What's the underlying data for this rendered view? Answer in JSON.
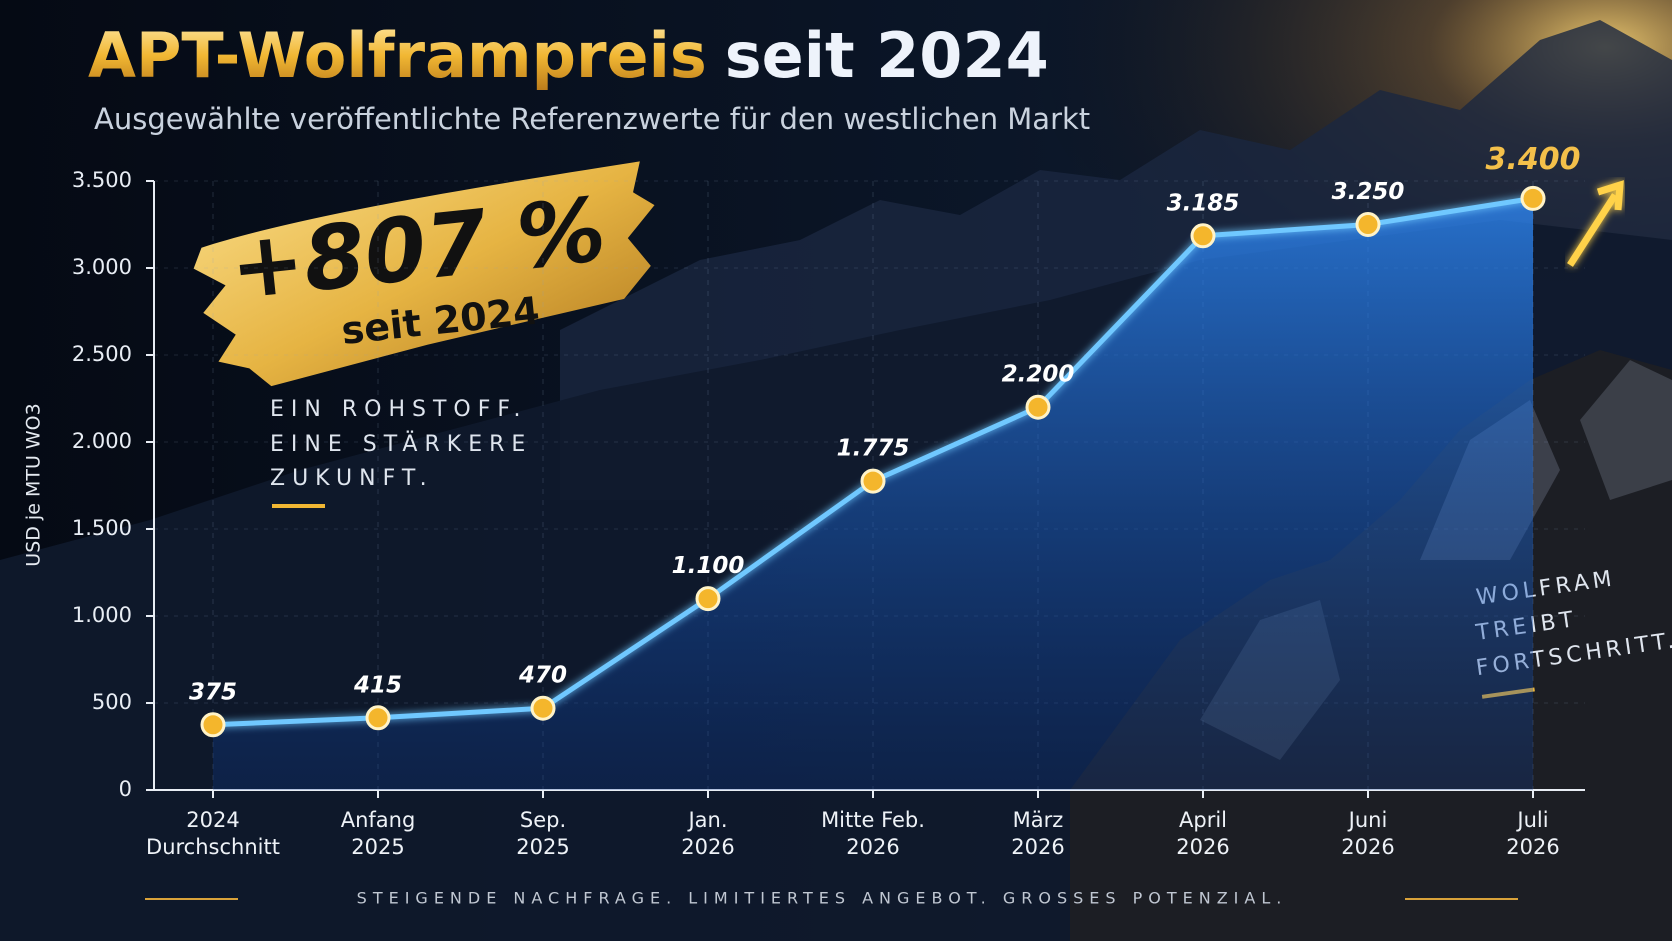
{
  "chart_data": {
    "type": "line",
    "title": {
      "highlight": "APT-Wolframpreis",
      "rest": "seit 2024"
    },
    "subtitle": "Ausgewählte veröffentlichte Referenzwerte für den westlichen Markt",
    "y_label": "USD je MTU WO3",
    "badge": {
      "big": "+807 %",
      "small": "seit 2024"
    },
    "slogan_left": [
      "EIN ROHSTOFF.",
      "EINE STÄRKERE",
      "ZUKUNFT."
    ],
    "slogan_right": [
      "WOLFRAM",
      "TREIBT",
      "FORTSCHRITT."
    ],
    "footer": "STEIGENDE NACHFRAGE. LIMITIERTES ANGEBOT. GROSSES POTENZIAL.",
    "categories": [
      [
        "2024",
        "Durchschnitt"
      ],
      [
        "Anfang",
        "2025"
      ],
      [
        "Sep.",
        "2025"
      ],
      [
        "Jan.",
        "2026"
      ],
      [
        "Mitte Feb.",
        "2026"
      ],
      [
        "März",
        "2026"
      ],
      [
        "April",
        "2026"
      ],
      [
        "Juni",
        "2026"
      ],
      [
        "Juli",
        "2026"
      ]
    ],
    "values": [
      375,
      415,
      470,
      1100,
      1775,
      2200,
      3185,
      3250,
      3400
    ],
    "value_labels": [
      "375",
      "415",
      "470",
      "1.100",
      "1.775",
      "2.200",
      "3.185",
      "3.250",
      "3.400"
    ],
    "color": "#6fc8ff",
    "marker_color": "#f4b62c",
    "ylim": [
      0,
      3500
    ],
    "yticks": [
      0,
      500,
      {
        "value": 1000,
        "label": "1.000"
      },
      {
        "value": 1500,
        "label": "1.500"
      },
      {
        "value": 2000,
        "label": "2.000"
      },
      {
        "value": 2500,
        "label": "2.500"
      },
      {
        "value": 3000,
        "label": "3.000"
      },
      {
        "value": 3500,
        "label": "3.500"
      }
    ],
    "grid": true
  }
}
